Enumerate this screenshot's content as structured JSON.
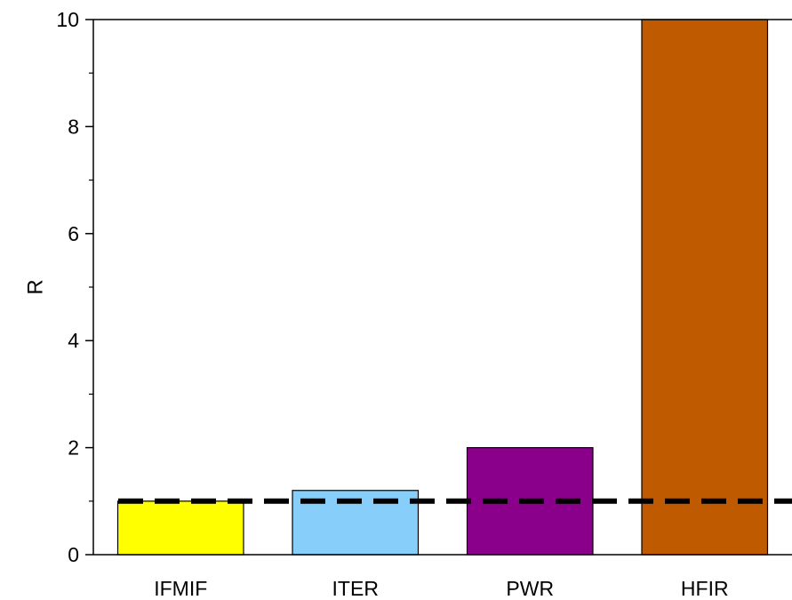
{
  "chart_data": {
    "type": "bar",
    "categories": [
      "IFMIF",
      "ITER",
      "PWR",
      "HFIR"
    ],
    "values": [
      1.0,
      1.2,
      2.0,
      10.0
    ],
    "colors": [
      "#ffff00",
      "#87cefa",
      "#8b008b",
      "#c05a00"
    ],
    "ylabel": "R",
    "ylim": [
      0,
      10
    ],
    "yticks": [
      0,
      2,
      4,
      6,
      8,
      10
    ],
    "yminor_step": 1,
    "reference_line": {
      "y": 1,
      "style": "dashed",
      "color": "#000000"
    },
    "grid": false,
    "legend": "none"
  }
}
